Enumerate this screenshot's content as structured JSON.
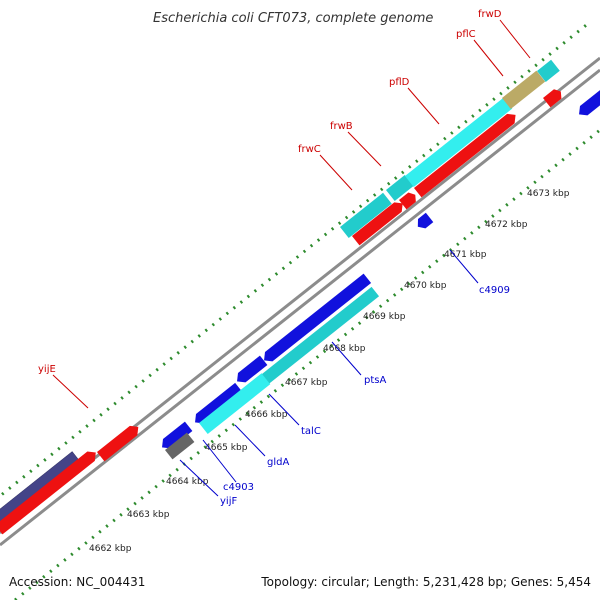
{
  "title": "Escherichia coli CFT073, complete genome",
  "footer": {
    "accession": "Accession: NC_004431",
    "summary": "Topology: circular; Length: 5,231,428 bp; Genes: 5,454"
  },
  "colors": {
    "background": "#ffffff",
    "backbone": "#9a9a9a",
    "gc_ticks": "#2e8b2e",
    "label_top": "#cc0000",
    "label_bottom": "#0000cc",
    "gene_red": "#ee1111",
    "gene_cyan": "#22dddd",
    "gene_blue": "#1111dd",
    "gene_navy": "#444488",
    "gene_gray": "#666666",
    "gene_olive": "#bbaa66"
  },
  "scale_ticks": [
    "4662 kbp",
    "4663 kbp",
    "4664 kbp",
    "4665 kbp",
    "4666 kbp",
    "4667 kbp",
    "4668 kbp",
    "4669 kbp",
    "4670 kbp",
    "4671 kbp",
    "4672 kbp",
    "4673 kbp"
  ],
  "gene_labels_top": [
    "yijE",
    "frwC",
    "frwB",
    "pflD",
    "pflC",
    "frwD"
  ],
  "gene_labels_bottom": [
    "yijF",
    "c4903",
    "gldA",
    "talC",
    "ptsA",
    "c4909"
  ]
}
